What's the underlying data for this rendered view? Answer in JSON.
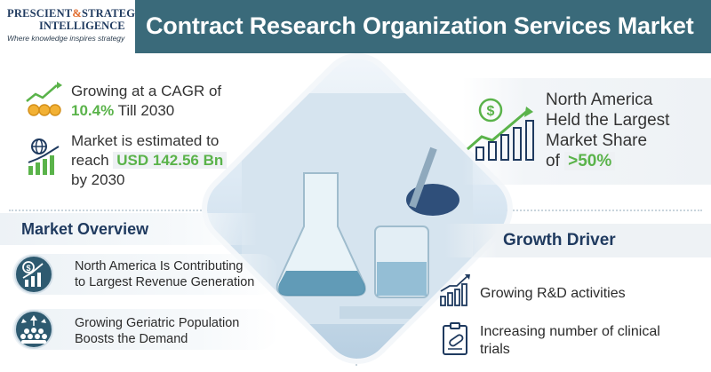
{
  "header": {
    "logo_word1": "PRESCIENT",
    "logo_amp": "&",
    "logo_word2": "STRATEGIC",
    "logo_word3": "INTELLIGENCE",
    "tagline": "Where knowledge inspires strategy",
    "title": "Contract Research Organization Services Market"
  },
  "stats": {
    "cagr_pre": "Growing at a CAGR of",
    "cagr_value": "10.4%",
    "cagr_post": "Till 2030",
    "market_pre": "Market is estimated to",
    "market_reach": "reach",
    "market_value": "USD 142.56 Bn",
    "market_post": "by 2030",
    "na_line1": "North America",
    "na_line2": "Held the Largest",
    "na_line3": "Market Share",
    "na_of": "of",
    "na_value": ">50%"
  },
  "overview": {
    "heading": "Market Overview",
    "item1_line1": "North America Is Contributing",
    "item1_line2": "to Largest Revenue Generation",
    "item2_line1": "Growing Geriatric Population",
    "item2_line2": "Boosts the Demand"
  },
  "drivers": {
    "heading": "Growth Driver",
    "item1": "Growing R&D activities",
    "item2_line1": "Increasing number of clinical",
    "item2_line2": "trials"
  },
  "colors": {
    "title_bar": "#3a6a7a",
    "navy": "#1f3a5f",
    "green": "#5ab34a",
    "orange": "#e06a2b"
  }
}
